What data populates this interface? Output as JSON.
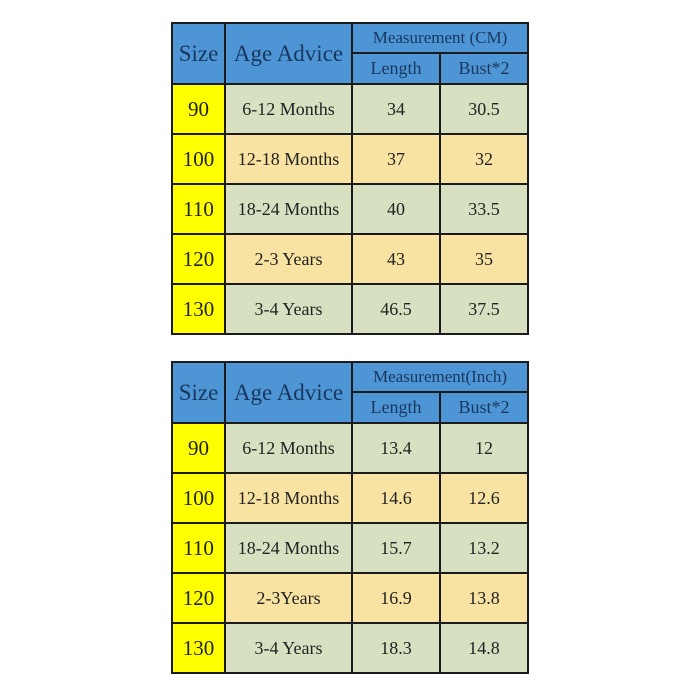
{
  "colors": {
    "header_blue": "#4e95d5",
    "header_text_navy": "#17375e",
    "size_column_yellow": "#ffff00",
    "row_green": "#d7e1c2",
    "row_tan": "#f8e3a2",
    "border_black": "#1b1b1b",
    "cell_text": "#222222",
    "background": "#ffffff"
  },
  "tables": [
    {
      "headers": {
        "size": "Size",
        "age": "Age Advice",
        "measurement": "Measurement (CM)",
        "length": "Length",
        "bust": "Bust*2"
      },
      "rows": [
        {
          "size": "90",
          "age": "6-12 Months",
          "length": "34",
          "bust": "30.5"
        },
        {
          "size": "100",
          "age": "12-18 Months",
          "length": "37",
          "bust": "32"
        },
        {
          "size": "110",
          "age": "18-24 Months",
          "length": "40",
          "bust": "33.5"
        },
        {
          "size": "120",
          "age": "2-3 Years",
          "length": "43",
          "bust": "35"
        },
        {
          "size": "130",
          "age": "3-4 Years",
          "length": "46.5",
          "bust": "37.5"
        }
      ]
    },
    {
      "headers": {
        "size": "Size",
        "age": "Age Advice",
        "measurement": "Measurement(Inch)",
        "length": "Length",
        "bust": "Bust*2"
      },
      "rows": [
        {
          "size": "90",
          "age": "6-12 Months",
          "length": "13.4",
          "bust": "12"
        },
        {
          "size": "100",
          "age": "12-18 Months",
          "length": "14.6",
          "bust": "12.6"
        },
        {
          "size": "110",
          "age": "18-24 Months",
          "length": "15.7",
          "bust": "13.2"
        },
        {
          "size": "120",
          "age": "2-3Years",
          "length": "16.9",
          "bust": "13.8"
        },
        {
          "size": "130",
          "age": "3-4 Years",
          "length": "18.3",
          "bust": "14.8"
        }
      ]
    }
  ],
  "chart_data": [
    {
      "type": "table",
      "title": "Measurement (CM)",
      "columns": [
        "Size",
        "Age Advice",
        "Length",
        "Bust*2"
      ],
      "rows": [
        [
          "90",
          "6-12 Months",
          34,
          30.5
        ],
        [
          "100",
          "12-18 Months",
          37,
          32
        ],
        [
          "110",
          "18-24 Months",
          40,
          33.5
        ],
        [
          "120",
          "2-3 Years",
          43,
          35
        ],
        [
          "130",
          "3-4 Years",
          46.5,
          37.5
        ]
      ]
    },
    {
      "type": "table",
      "title": "Measurement(Inch)",
      "columns": [
        "Size",
        "Age Advice",
        "Length",
        "Bust*2"
      ],
      "rows": [
        [
          "90",
          "6-12 Months",
          13.4,
          12
        ],
        [
          "100",
          "12-18 Months",
          14.6,
          12.6
        ],
        [
          "110",
          "18-24 Months",
          15.7,
          13.2
        ],
        [
          "120",
          "2-3Years",
          16.9,
          13.8
        ],
        [
          "130",
          "3-4 Years",
          18.3,
          14.8
        ]
      ]
    }
  ]
}
